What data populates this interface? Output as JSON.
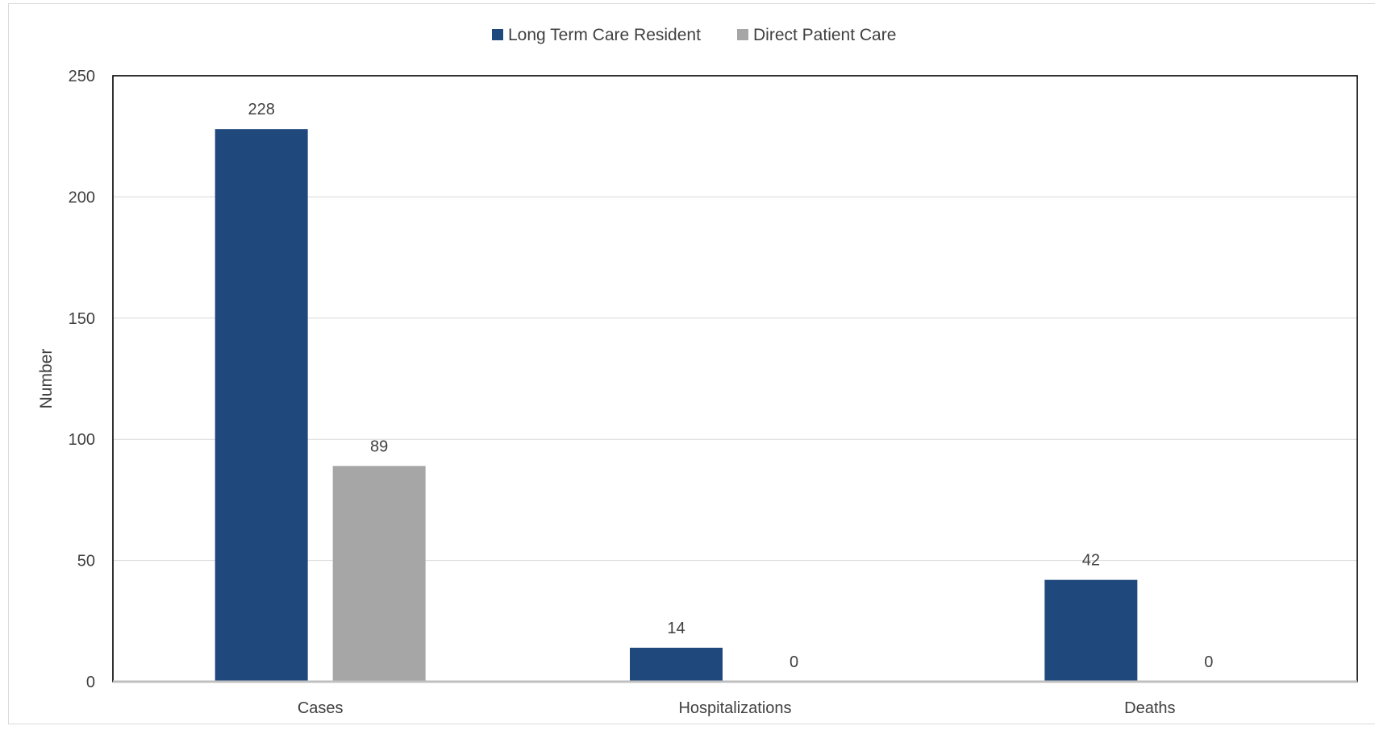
{
  "chart_data": {
    "type": "bar",
    "title": "",
    "xlabel": "",
    "ylabel": "Number",
    "ylim": [
      0,
      250
    ],
    "yticks": [
      0,
      50,
      100,
      150,
      200,
      250
    ],
    "grid": true,
    "legend_position": "top",
    "categories": [
      "Cases",
      "Hospitalizations",
      "Deaths"
    ],
    "series": [
      {
        "name": "Long Term Care Resident",
        "color": "#1f497d",
        "values": [
          228,
          14,
          42
        ]
      },
      {
        "name": "Direct Patient Care",
        "color": "#a6a6a6",
        "values": [
          89,
          0,
          0
        ]
      }
    ]
  }
}
